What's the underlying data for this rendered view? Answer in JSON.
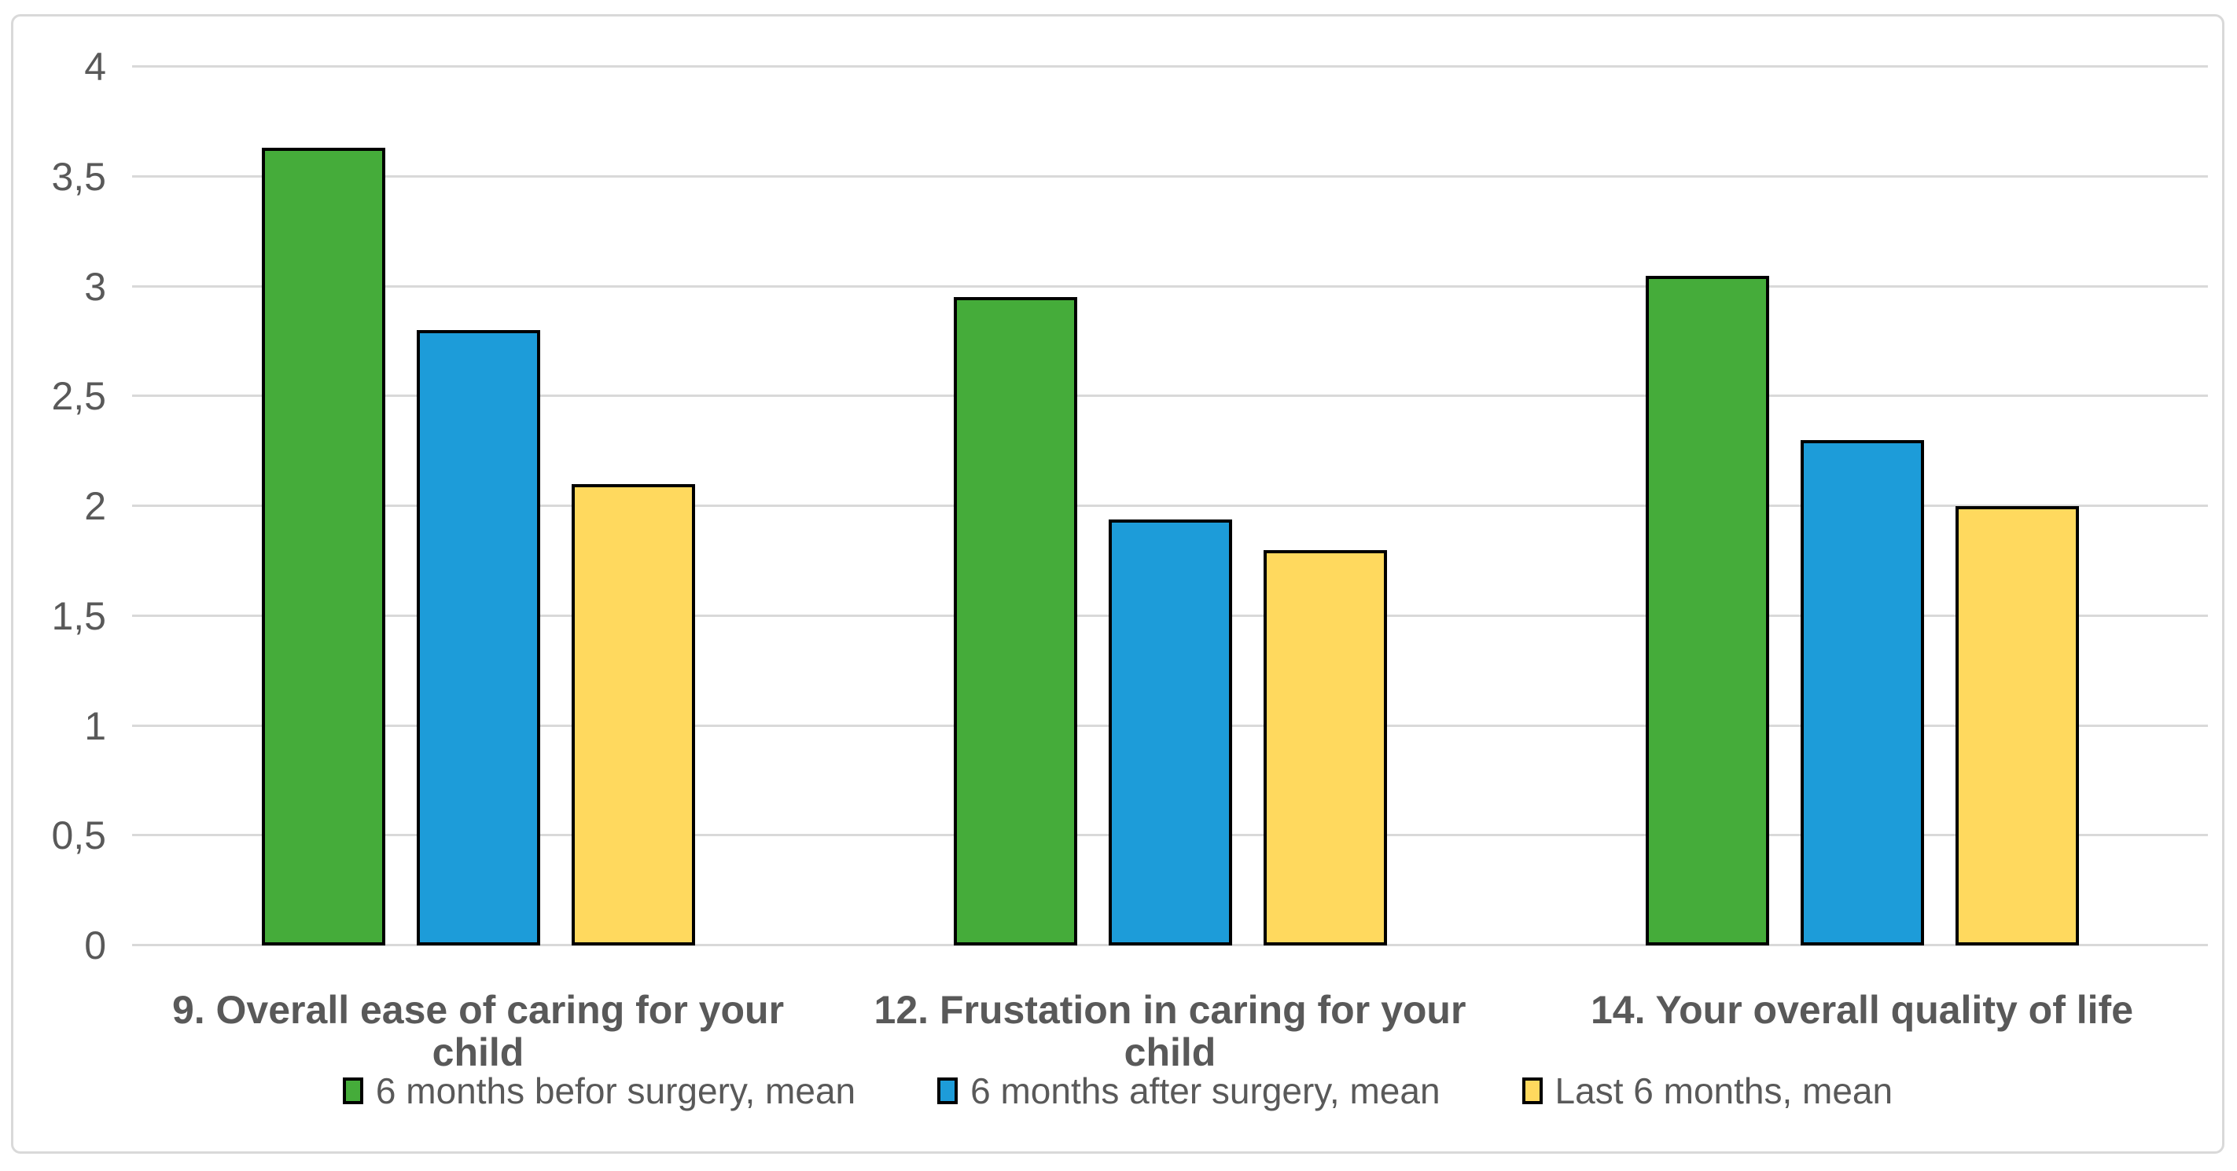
{
  "chart_data": {
    "type": "bar",
    "title": "",
    "categories": [
      "9. Overall ease of caring for your child",
      "12. Frustation in caring for your child",
      "14. Your overall quality of life"
    ],
    "series": [
      {
        "name": "6 months befor surgery, mean",
        "color": "#45ac3a",
        "values": [
          3.63,
          2.95,
          3.05
        ]
      },
      {
        "name": "6 months after surgery, mean",
        "color": "#1d9cd9",
        "values": [
          2.8,
          1.94,
          2.3
        ]
      },
      {
        "name": "Last 6 months, mean",
        "color": "#ffd95e",
        "values": [
          2.1,
          1.8,
          2.0
        ]
      }
    ],
    "xlabel": "",
    "ylabel": "",
    "ylim": [
      0,
      4
    ],
    "ytick_step": 0.5,
    "ytick_labels": [
      "0",
      "0,5",
      "1",
      "1,5",
      "2",
      "2,5",
      "3",
      "3,5",
      "4"
    ],
    "decimal_separator": ",",
    "grid": "horizontal",
    "legend_position": "bottom"
  },
  "colors": {
    "gridline": "#d9d9d9",
    "frame_border": "#d9d9d9",
    "axis_text": "#595959",
    "category_text": "#595959",
    "legend_text": "#595959",
    "bar_border": "#000000",
    "background": "#ffffff"
  }
}
